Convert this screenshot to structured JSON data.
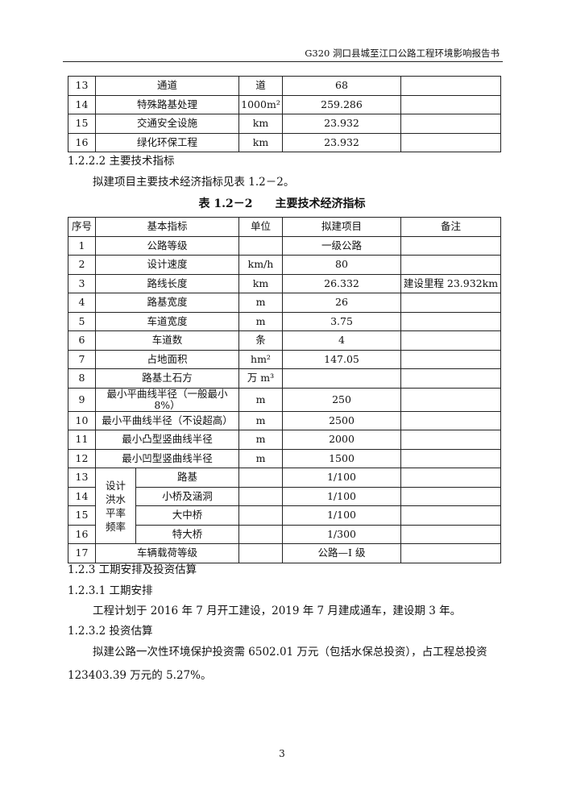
{
  "header": {
    "title": "G320 洞口县城至江口公路工程环境影响报告书"
  },
  "table1": {
    "rows": [
      [
        "13",
        "通道",
        "道",
        "68",
        ""
      ],
      [
        "14",
        "特殊路基处理",
        "1000m²",
        "259.286",
        ""
      ],
      [
        "15",
        "交通安全设施",
        "km",
        "23.932",
        ""
      ],
      [
        "16",
        "绿化环保工程",
        "km",
        "23.932",
        ""
      ]
    ]
  },
  "sections": {
    "s1222": "1.2.2.2  主要技术指标",
    "p1": "拟建项目主要技术经济指标见表 1.2－2。",
    "s123": "1.2.3   工期安排及投资估算",
    "s1231": "1.2.3.1   工期安排",
    "p2": "工程计划于 2016 年 7 月开工建设，2019 年 7 月建成通车，建设期 3 年。",
    "s1232": "1.2.3.2   投资估算",
    "p3a": "拟建公路一次性环境保护投资需 6502.01 万元（包括水保总投资），占工程总投资",
    "p3b": "123403.39 万元的 5.27%。"
  },
  "table2": {
    "caption_no": "表 1.2－2",
    "caption_title": "主要技术经济指标",
    "headers": [
      "序号",
      "基本指标",
      "单位",
      "拟建项目",
      "备注"
    ],
    "rows": [
      [
        "1",
        "公路等级",
        "",
        "一级公路",
        ""
      ],
      [
        "2",
        "设计速度",
        "km/h",
        "80",
        ""
      ],
      [
        "3",
        "路线长度",
        "km",
        "26.332",
        "建设里程 23.932km"
      ],
      [
        "4",
        "路基宽度",
        "m",
        "26",
        ""
      ],
      [
        "5",
        "车道宽度",
        "m",
        "3.75",
        ""
      ],
      [
        "6",
        "车道数",
        "条",
        "4",
        ""
      ],
      [
        "7",
        "占地面积",
        "hm²",
        "147.05",
        ""
      ],
      [
        "8",
        "路基土石方",
        "万 m³",
        "",
        ""
      ],
      [
        "9",
        "最小平曲线半径（一般最小 8%）",
        "m",
        "250",
        ""
      ],
      [
        "10",
        "最小平曲线半径（不设超高）",
        "m",
        "2500",
        ""
      ],
      [
        "11",
        "最小凸型竖曲线半径",
        "m",
        "2000",
        ""
      ],
      [
        "12",
        "最小凹型竖曲线半径",
        "m",
        "1500",
        ""
      ]
    ],
    "flood_group": "设计洪水平率频率",
    "flood_rows": [
      [
        "13",
        "路基",
        "",
        "1/100",
        ""
      ],
      [
        "14",
        "小桥及涵洞",
        "",
        "1/100",
        ""
      ],
      [
        "15",
        "大中桥",
        "",
        "1/100",
        ""
      ],
      [
        "16",
        "特大桥",
        "",
        "1/300",
        ""
      ]
    ],
    "last_row": [
      "17",
      "车辆载荷等级",
      "",
      "公路—I 级",
      ""
    ]
  },
  "page_number": "3"
}
